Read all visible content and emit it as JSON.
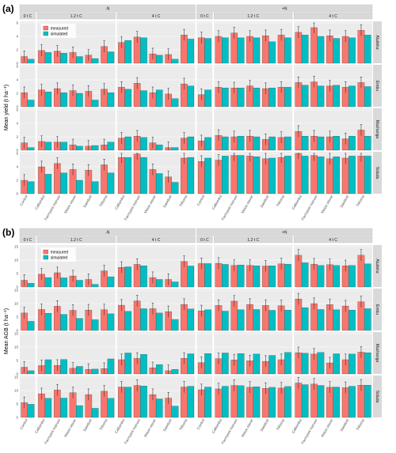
{
  "colors": {
    "measured": "#f8766d",
    "simulated": "#00bfc4",
    "panel_bg": "#ebebeb",
    "strip_bg": "#d9d9d9",
    "grid": "#ffffff",
    "bar_edge": "#333333"
  },
  "chart_data": [
    {
      "type": "bar",
      "panel_label": "(a)",
      "ylabel": "Mean yield (t ha⁻¹)",
      "ylim": [
        0,
        6
      ],
      "yticks": [
        0,
        2,
        4,
        6
      ],
      "legend": {
        "placement": "top-left",
        "entries": [
          "measured",
          "simulated"
        ]
      },
      "groups": [
        {
          "top": "-N",
          "sub": "0 t C",
          "categories": [
            "Control"
          ]
        },
        {
          "top": "-N",
          "sub": "1.2 t C",
          "categories": [
            "Calliandra",
            "Farmyard manure",
            "Maize stover",
            "Sawdust",
            "Tithonia"
          ]
        },
        {
          "top": "-N",
          "sub": "4 t C",
          "categories": [
            "Calliandra",
            "Farmyard manure",
            "Maize stover",
            "Sawdust",
            "Tithonia"
          ]
        },
        {
          "top": "+N",
          "sub": "0 t C",
          "categories": [
            "Control"
          ]
        },
        {
          "top": "+N",
          "sub": "1.2 t C",
          "categories": [
            "Calliandra",
            "Farmyard manure",
            "Maize stover",
            "Sawdust",
            "Tithonia"
          ]
        },
        {
          "top": "+N",
          "sub": "4 t C",
          "categories": [
            "Calliandra",
            "Farmyard manure",
            "Maize stover",
            "Sawdust",
            "Tithonia"
          ]
        }
      ],
      "sites": [
        {
          "name": "Aludeka",
          "measured": [
            1.0,
            1.9,
            1.8,
            1.6,
            1.2,
            2.5,
            3.1,
            3.9,
            1.4,
            1.3,
            4.2,
            3.8,
            4.0,
            4.5,
            4.0,
            4.1,
            4.2,
            4.6,
            5.3,
            4.1,
            4.0,
            4.9
          ],
          "simulated": [
            0.6,
            1.6,
            1.5,
            1.0,
            0.7,
            1.7,
            3.4,
            3.8,
            1.2,
            0.6,
            3.6,
            3.7,
            3.8,
            3.8,
            3.8,
            3.2,
            3.8,
            4.2,
            4.0,
            3.7,
            3.8,
            4.2
          ]
        },
        {
          "name": "Embu",
          "measured": [
            2.1,
            2.5,
            2.7,
            2.4,
            2.3,
            2.6,
            2.9,
            3.5,
            2.1,
            1.9,
            3.4,
            1.8,
            2.9,
            2.8,
            3.1,
            2.7,
            2.9,
            3.6,
            3.7,
            3.1,
            2.9,
            3.6
          ],
          "simulated": [
            1.0,
            2.2,
            2.1,
            2.0,
            1.0,
            2.1,
            2.6,
            2.4,
            2.5,
            1.2,
            3.1,
            2.5,
            2.8,
            2.8,
            2.8,
            2.8,
            2.9,
            3.2,
            3.1,
            3.2,
            3.1,
            3.0
          ]
        },
        {
          "name": "Machanga",
          "measured": [
            1.1,
            1.3,
            1.2,
            0.8,
            0.6,
            0.8,
            1.8,
            2.1,
            1.1,
            0.4,
            1.8,
            1.4,
            2.2,
            2.0,
            2.1,
            1.6,
            1.9,
            2.8,
            2.1,
            2.0,
            1.7,
            3.0
          ],
          "simulated": [
            0.4,
            1.2,
            1.2,
            0.6,
            0.7,
            1.2,
            2.0,
            1.9,
            0.8,
            0.4,
            2.0,
            1.9,
            2.0,
            2.1,
            2.0,
            2.0,
            2.0,
            2.1,
            2.0,
            2.1,
            2.1,
            2.1
          ]
        },
        {
          "name": "Sidada",
          "measured": [
            2.0,
            4.0,
            4.5,
            3.6,
            3.5,
            4.3,
            5.4,
            5.9,
            3.6,
            2.5,
            5.3,
            4.8,
            5.0,
            5.7,
            5.6,
            5.2,
            5.4,
            6.0,
            5.7,
            5.2,
            5.3,
            5.6
          ],
          "simulated": [
            1.8,
            2.9,
            3.1,
            2.0,
            1.8,
            3.1,
            5.4,
            5.4,
            3.0,
            1.7,
            5.4,
            5.3,
            5.6,
            5.7,
            5.5,
            5.3,
            5.6,
            5.6,
            5.5,
            5.5,
            5.6,
            5.6
          ]
        }
      ]
    },
    {
      "type": "bar",
      "panel_label": "(b)",
      "ylabel": "Mean AGB (t ha⁻¹)",
      "ylim": [
        0,
        15
      ],
      "yticks": [
        0,
        5,
        10,
        15
      ],
      "legend": {
        "placement": "top-left",
        "entries": [
          "measured",
          "simulated"
        ]
      },
      "groups": [
        {
          "top": "-N",
          "sub": "0 t C",
          "categories": [
            "Control"
          ]
        },
        {
          "top": "-N",
          "sub": "1.2 t C",
          "categories": [
            "Calliandra",
            "Farmyard manure",
            "Maize stover",
            "Sawdust",
            "Tithonia"
          ]
        },
        {
          "top": "-N",
          "sub": "4 t C",
          "categories": [
            "Calliandra",
            "Farmyard manure",
            "Maize stover",
            "Sawdust",
            "Tithonia"
          ]
        },
        {
          "top": "+N",
          "sub": "0 t C",
          "categories": [
            "Control"
          ]
        },
        {
          "top": "+N",
          "sub": "1.2 t C",
          "categories": [
            "Calliandra",
            "Farmyard manure",
            "Maize stover",
            "Sawdust",
            "Tithonia"
          ]
        },
        {
          "top": "+N",
          "sub": "4 t C",
          "categories": [
            "Calliandra",
            "Farmyard manure",
            "Maize stover",
            "Sawdust",
            "Tithonia"
          ]
        }
      ],
      "sites": [
        {
          "name": "Aludeka",
          "measured": [
            2.5,
            4.8,
            5.3,
            4.1,
            2.8,
            6.0,
            7.3,
            8.4,
            3.5,
            2.8,
            9.5,
            8.7,
            8.8,
            8.0,
            8.0,
            7.8,
            8.6,
            11.8,
            8.5,
            8.3,
            7.9,
            11.8
          ],
          "simulated": [
            1.4,
            3.5,
            3.4,
            2.5,
            1.0,
            3.8,
            7.5,
            7.9,
            2.8,
            1.9,
            7.8,
            8.7,
            8.4,
            8.2,
            7.9,
            7.9,
            8.5,
            9.0,
            8.0,
            8.0,
            8.0,
            8.6
          ]
        },
        {
          "name": "Embu",
          "measured": [
            6.5,
            7.8,
            9.0,
            7.5,
            7.6,
            7.7,
            9.4,
            11.0,
            8.1,
            7.0,
            9.7,
            7.3,
            9.3,
            10.9,
            9.7,
            9.3,
            9.2,
            11.7,
            10.0,
            9.6,
            9.1,
            10.7
          ],
          "simulated": [
            3.4,
            6.4,
            6.0,
            4.5,
            4.0,
            6.2,
            7.1,
            8.1,
            6.5,
            4.1,
            8.0,
            7.7,
            7.2,
            7.7,
            7.8,
            7.5,
            7.6,
            8.5,
            7.8,
            7.7,
            7.6,
            8.1
          ]
        },
        {
          "name": "Machanga",
          "measured": [
            2.5,
            3.1,
            3.2,
            2.1,
            1.7,
            2.0,
            5.3,
            5.8,
            2.3,
            1.2,
            5.8,
            4.2,
            5.7,
            5.2,
            4.9,
            4.7,
            5.3,
            7.9,
            7.4,
            4.1,
            5.3,
            8.1
          ],
          "simulated": [
            1.2,
            5.3,
            5.4,
            2.8,
            1.8,
            5.6,
            7.8,
            7.3,
            3.5,
            1.7,
            7.5,
            7.6,
            7.8,
            7.6,
            7.4,
            6.9,
            8.0,
            7.7,
            8.0,
            7.5,
            7.4,
            7.9
          ]
        },
        {
          "name": "Sidada",
          "measured": [
            5.5,
            8.8,
            10.2,
            9.2,
            8.5,
            9.8,
            11.3,
            11.9,
            8.5,
            7.2,
            11.3,
            10.3,
            10.6,
            11.9,
            11.2,
            10.8,
            10.9,
            12.8,
            12.4,
            11.2,
            11.1,
            12.0
          ],
          "simulated": [
            4.9,
            7.1,
            7.2,
            4.4,
            3.4,
            7.1,
            11.3,
            11.7,
            6.9,
            4.2,
            11.6,
            11.3,
            11.6,
            11.8,
            11.4,
            11.2,
            11.5,
            12.2,
            11.9,
            11.3,
            11.6,
            12.0
          ]
        }
      ]
    }
  ]
}
